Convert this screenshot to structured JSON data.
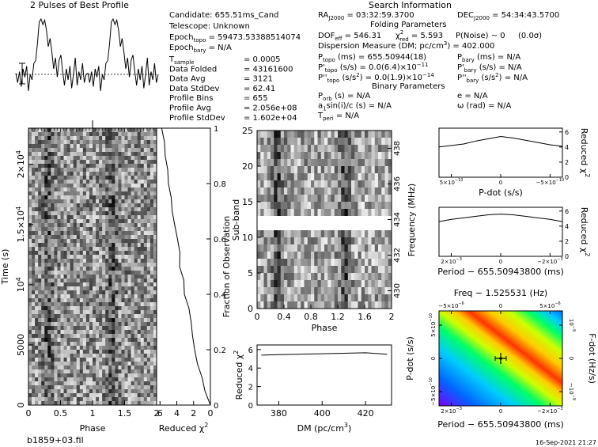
{
  "header": {
    "profile_title": "2 Pulses of Best Profile",
    "search_title": "Search Information",
    "candidate": "Candidate:  655.51ms_Cand",
    "telescope": "Telescope:  Unknown",
    "epoch_topo": "Epoch",
    "epoch_topo_sub": "topo",
    "epoch_topo_val": " = 59473.53388514074",
    "epoch_bary": "Epoch",
    "epoch_bary_sub": "bary",
    "epoch_bary_val": " = N/A",
    "ra": "RA",
    "ra_sub": "J2000",
    "ra_val": " = 03:32:59.3700",
    "dec": "DEC",
    "dec_sub": "J2000",
    "dec_val": " = 54:34:43.5700",
    "folding_parameters": "Folding Parameters",
    "dof": "DOF",
    "dof_sub": "eff",
    "dof_val": " = 546.31",
    "chi_red": "χ",
    "chi_red_sup": "2",
    "chi_red_sub": "red",
    "chi_red_val": " = 5.593",
    "pnoise": "P(Noise) ~ 0",
    "sigma": "(0.0σ)",
    "dm_line": "Dispersion Measure (DM; pc/cm",
    "dm_line_sup": "3",
    "dm_line_tail": ") = 402.000",
    "binary_parameters": "Binary Parameters"
  },
  "left_params": [
    {
      "label": "T",
      "sub": "sample",
      "value": "0.0005"
    },
    {
      "label": "Data Folded",
      "sub": "",
      "value": "43161600"
    },
    {
      "label": "Data Avg",
      "sub": "",
      "value": "3121"
    },
    {
      "label": "Data StdDev",
      "sub": "",
      "value": "62.41"
    },
    {
      "label": "Profile Bins",
      "sub": "",
      "value": "655"
    },
    {
      "label": "Profile Avg",
      "sub": "",
      "value": "2.056e+08"
    },
    {
      "label": "Profile StdDev",
      "sub": "",
      "value": "1.602e+04"
    }
  ],
  "fold_params": [
    {
      "label": "P",
      "sub": "topo",
      "sup": "",
      "unit": " (ms) =",
      "value": " 655.50944(18)",
      "extra": "P",
      "extra_sub": "bary",
      "extra_sup": "",
      "extra_val": " (ms) = N/A"
    },
    {
      "label": "P'",
      "sub": "topo",
      "sup": "",
      "unit": " (s/s) =",
      "value": " 0.0(6.4)×10",
      "value_sup": "−11",
      "extra": "P'",
      "extra_sub": "bary",
      "extra_sup": "",
      "extra_val": " (s/s) = N/A"
    },
    {
      "label": "P''",
      "sub": "topo",
      "sup": "",
      "unit": " (s/s",
      "unit_sup": "2",
      "unit_tail": ") =",
      "value": " 0.0(1.9)×10",
      "value_sup": "−14",
      "extra": "P''",
      "extra_sub": "bary",
      "extra_sup": "",
      "extra_val": " (s/s",
      "extra_val_sup": "2",
      "extra_val_tail": ") = N/A"
    }
  ],
  "binary_params": [
    {
      "label": "P",
      "sub": "orb",
      "text": " (s) = N/A",
      "right": "e = N/A"
    },
    {
      "label": "a",
      "sub": "1",
      "text": "sin(i)/c (s) = N/A",
      "right": "ω (rad) = N/A"
    },
    {
      "label": "T",
      "sub": "peri",
      "text": " = N/A",
      "right": ""
    }
  ],
  "footer": {
    "filename": "b1859+03.fil",
    "timestamp": "16-Sep-2021 21:27"
  },
  "chart_data": [
    {
      "type": "line",
      "name": "profile",
      "title": "2 Pulses of Best Profile",
      "x_range": [
        0,
        2
      ],
      "description_note": "",
      "pulse_peaks_phase": [
        0.28,
        1.28
      ],
      "values": [
        0.02,
        -0.15,
        0.05,
        -0.22,
        0.1,
        -0.05,
        0.15,
        -0.3,
        0.0,
        -0.1,
        0.2,
        0.25,
        0.55,
        0.95,
        1.0,
        0.9,
        0.98,
        0.8,
        0.5,
        0.65,
        0.4,
        0.1,
        0.3,
        -0.05,
        0.25,
        0.35,
        0.05,
        -0.2,
        0.1,
        -0.1,
        0.15,
        -0.25,
        0.0,
        0.3,
        -0.2,
        0.05,
        -0.1,
        0.2,
        -0.15,
        0.0
      ]
    },
    {
      "type": "heatmap",
      "name": "time_vs_phase",
      "xlabel": "Phase",
      "ylabel": "Time (s)",
      "x_ticks": [
        "0",
        "0.5",
        "1",
        "1.5",
        "2"
      ],
      "y_ticks": [
        "0",
        "5000",
        "10",
        "1.5×10",
        "2×10"
      ],
      "y_tick_sups": [
        "",
        "",
        "4",
        "4",
        "4"
      ],
      "xlim": [
        0,
        2
      ],
      "ylim": [
        0,
        23000
      ]
    },
    {
      "type": "line",
      "name": "reduced_chi2_vs_time",
      "xlabel": "Reduced χ",
      "xlabel_sup": "2",
      "ylabel": "Fraction of Observation",
      "x_ticks": [
        "6",
        "4",
        "2",
        "0"
      ],
      "y_ticks": [
        "0",
        "0.2",
        "0.4",
        "0.6",
        "0.8",
        "1"
      ],
      "fraction": [
        0.0,
        0.05,
        0.1,
        0.15,
        0.2,
        0.25,
        0.3,
        0.35,
        0.4,
        0.45,
        0.5,
        0.55,
        0.6,
        0.65,
        0.7,
        0.75,
        0.8,
        0.85,
        0.9,
        0.95,
        1.0
      ],
      "chi2": [
        0.0,
        0.6,
        1.0,
        1.5,
        1.8,
        2.1,
        2.4,
        2.7,
        3.0,
        3.2,
        3.5,
        3.7,
        3.9,
        4.2,
        4.5,
        4.7,
        5.0,
        5.2,
        5.4,
        5.6,
        5.8
      ]
    },
    {
      "type": "heatmap",
      "name": "subband_vs_phase",
      "xlabel": "Phase",
      "ylabel": "Sub-band",
      "y2label": "Frequency (MHz)",
      "x_ticks": [
        "0",
        "0.4",
        "0.8",
        "1.2",
        "1.6",
        "2"
      ],
      "y_ticks": [
        "0",
        "5",
        "10",
        "15",
        "20",
        "25"
      ],
      "y2_ticks": [
        "430",
        "432",
        "434",
        "436",
        "438"
      ],
      "masked_subbands": [
        11,
        12
      ]
    },
    {
      "type": "line",
      "name": "reduced_chi2_vs_dm",
      "xlabel": "DM (pc/cm",
      "xlabel_sup": "3",
      "xlabel_tail": ")",
      "ylabel": "Reduced χ",
      "ylabel_sup": "2",
      "x_ticks": [
        "380",
        "400",
        "420"
      ],
      "y_ticks": [
        "0",
        "2",
        "4",
        "6"
      ],
      "x": [
        372,
        380,
        390,
        400,
        410,
        420,
        430
      ],
      "y": [
        5.4,
        5.45,
        5.5,
        5.55,
        5.6,
        5.65,
        5.5
      ]
    },
    {
      "type": "line",
      "name": "reduced_chi2_vs_pdot",
      "xlabel": "P-dot (s/s)",
      "ylabel": "Reduced χ",
      "ylabel_sup": "2",
      "x_ticks": [
        "5×10",
        "0",
        "−5×10"
      ],
      "x_tick_sups": [
        "−10",
        "",
        "−10"
      ],
      "y_ticks": [
        "0",
        "2",
        "4",
        "6"
      ],
      "x": [
        -1.0,
        -0.8,
        -0.6,
        -0.4,
        -0.2,
        0.0,
        0.2,
        0.4,
        0.6,
        0.8,
        1.0
      ],
      "y": [
        4.0,
        4.2,
        4.4,
        4.8,
        5.1,
        5.4,
        5.2,
        4.9,
        4.6,
        4.3,
        4.1
      ]
    },
    {
      "type": "line",
      "name": "reduced_chi2_vs_period",
      "xlabel": "Period − 655.50943800 (ms)",
      "ylabel": "Reduced χ",
      "ylabel_sup": "2",
      "x_ticks": [
        "2×10",
        "0",
        "−2×10"
      ],
      "x_tick_sups": [
        "−3",
        "",
        "−3"
      ],
      "y_ticks": [
        "0",
        "2",
        "4",
        "6"
      ],
      "x": [
        -1.0,
        -0.8,
        -0.6,
        -0.4,
        -0.2,
        0.0,
        0.2,
        0.4,
        0.6,
        0.8,
        1.0
      ],
      "y": [
        4.6,
        4.9,
        5.1,
        5.3,
        5.5,
        5.6,
        5.5,
        5.3,
        5.1,
        4.9,
        4.6
      ]
    },
    {
      "type": "heatmap",
      "name": "pdot_vs_period",
      "top_label": "Freq − 1.525531 (Hz)",
      "top_ticks": [
        "−5×10",
        "0",
        "5×10"
      ],
      "top_tick_sups": [
        "−6",
        "",
        "−6"
      ],
      "xlabel": "Period − 655.50943800 (ms)",
      "ylabel": "P-dot (s/s)",
      "y2label": "F-dot (Hz/s)",
      "x_ticks": [
        "2×10",
        "0",
        "−2×10"
      ],
      "x_tick_sups": [
        "−3",
        "",
        "−3"
      ],
      "y_ticks": [
        "5×10",
        "0",
        "−5×10"
      ],
      "y_tick_sups": [
        "−10",
        "",
        "−10"
      ],
      "y2_ticks": [
        "10",
        "0",
        "−10"
      ],
      "y2_tick_sups": [
        "−9",
        "",
        "−9"
      ],
      "colormap": [
        "#7a00ff",
        "#0066ff",
        "#00ccff",
        "#00ff66",
        "#ccff00",
        "#ffcc00",
        "#ff3300"
      ]
    }
  ]
}
